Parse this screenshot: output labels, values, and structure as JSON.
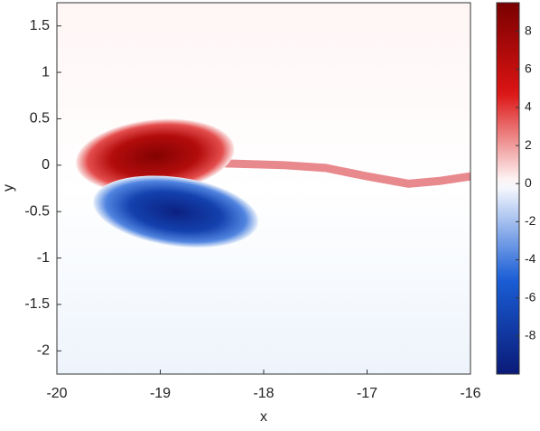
{
  "chart_data": {
    "type": "field",
    "xlabel": "x",
    "ylabel": "y",
    "xlim": [
      -20,
      -16
    ],
    "xticks": [
      -20,
      -19,
      -18,
      -17,
      -16
    ],
    "ylim": [
      -2.25,
      1.75
    ],
    "yticks": [
      -2,
      -1.5,
      -1,
      -0.5,
      0,
      0.5,
      1,
      1.5
    ],
    "clim": [
      -10,
      9.5
    ],
    "cticks": [
      -8,
      -6,
      -4,
      -2,
      0,
      2,
      4,
      6,
      8
    ],
    "colors": [
      "#0a1a78",
      "#1a5ed6",
      "#ffffff",
      "#dc1414",
      "#7a0000"
    ],
    "features": [
      {
        "x": -19.05,
        "y": 0.1,
        "value": 9
      },
      {
        "x": -18.85,
        "y": -0.5,
        "value": -9.5
      }
    ],
    "wake": {
      "color": "#e8898e",
      "x": [
        -18.4,
        -17.8,
        -17.4,
        -17.0,
        -16.6,
        -16.3,
        -16.0
      ],
      "y": [
        0.02,
        0.0,
        -0.03,
        -0.12,
        -0.2,
        -0.17,
        -0.12
      ]
    }
  }
}
